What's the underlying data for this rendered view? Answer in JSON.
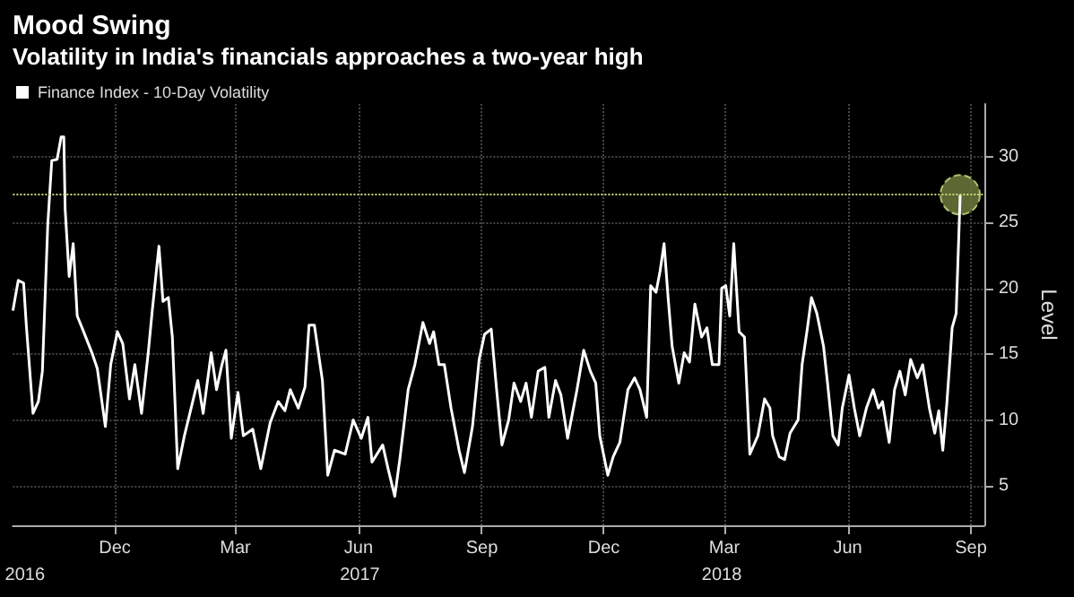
{
  "chart_data": {
    "type": "line",
    "title": "Mood Swing",
    "subtitle": "Volatility in India's financials approaches a two-year high",
    "ylabel": "Level",
    "xlim": [
      "2016-09-16",
      "2018-09-11"
    ],
    "xticks": [
      {
        "value": "2016-12-01",
        "label": "Dec"
      },
      {
        "value": "2017-03-01",
        "label": "Mar"
      },
      {
        "value": "2017-06-01",
        "label": "Jun"
      },
      {
        "value": "2017-09-01",
        "label": "Sep"
      },
      {
        "value": "2017-12-01",
        "label": "Dec"
      },
      {
        "value": "2018-03-01",
        "label": "Mar"
      },
      {
        "value": "2018-06-01",
        "label": "Jun"
      },
      {
        "value": "2018-09-01",
        "label": "Sep"
      }
    ],
    "x2lim": [
      "2016-09-16",
      "2018-09-11"
    ],
    "x2ticks": [
      {
        "value": "2016-09-25",
        "label": "2016"
      },
      {
        "value": "2017-06-02",
        "label": "2017"
      },
      {
        "value": "2018-02-27",
        "label": "2018"
      }
    ],
    "ylim": [
      2,
      34
    ],
    "yticks": [
      5,
      10,
      15,
      20,
      25,
      30
    ],
    "grid": true,
    "legend": "top left",
    "marker": "none",
    "ref_lines": [
      {
        "axis": "y",
        "value": 27.1,
        "color": "#c8d878",
        "line_style": "dotted"
      }
    ],
    "series": [
      {
        "name": "Finance Index - 10-Day Volatility",
        "color": "#ffffff",
        "x": [
          "2016-09-16",
          "2016-09-20",
          "2016-09-24",
          "2016-09-26",
          "2016-10-01",
          "2016-10-05",
          "2016-10-08",
          "2016-10-12",
          "2016-10-15",
          "2016-10-19",
          "2016-10-22",
          "2016-10-24",
          "2016-10-25",
          "2016-10-28",
          "2016-10-31",
          "2016-11-03",
          "2016-11-07",
          "2016-11-14",
          "2016-11-18",
          "2016-11-24",
          "2016-11-28",
          "2016-12-03",
          "2016-12-07",
          "2016-12-12",
          "2016-12-16",
          "2016-12-21",
          "2016-12-26",
          "2016-12-29",
          "2017-01-03",
          "2017-01-06",
          "2017-01-10",
          "2017-01-13",
          "2017-01-17",
          "2017-01-22",
          "2017-01-27",
          "2017-02-01",
          "2017-02-05",
          "2017-02-11",
          "2017-02-15",
          "2017-02-19",
          "2017-02-22",
          "2017-02-26",
          "2017-03-03",
          "2017-03-07",
          "2017-03-14",
          "2017-03-20",
          "2017-03-27",
          "2017-04-02",
          "2017-04-07",
          "2017-04-11",
          "2017-04-17",
          "2017-04-22",
          "2017-04-25",
          "2017-04-29",
          "2017-05-05",
          "2017-05-09",
          "2017-05-14",
          "2017-05-22",
          "2017-05-28",
          "2017-06-03",
          "2017-06-08",
          "2017-06-11",
          "2017-06-19",
          "2017-06-23",
          "2017-06-28",
          "2017-07-02",
          "2017-07-08",
          "2017-07-13",
          "2017-07-19",
          "2017-07-24",
          "2017-07-27",
          "2017-07-31",
          "2017-08-04",
          "2017-08-09",
          "2017-08-15",
          "2017-08-19",
          "2017-08-25",
          "2017-08-30",
          "2017-09-03",
          "2017-09-08",
          "2017-09-12",
          "2017-09-16",
          "2017-09-21",
          "2017-09-25",
          "2017-09-30",
          "2017-10-04",
          "2017-10-08",
          "2017-10-13",
          "2017-10-18",
          "2017-10-21",
          "2017-10-26",
          "2017-10-30",
          "2017-11-04",
          "2017-11-11",
          "2017-11-16",
          "2017-11-21",
          "2017-11-25",
          "2017-11-28",
          "2017-12-04",
          "2017-12-08",
          "2017-12-13",
          "2017-12-19",
          "2017-12-24",
          "2017-12-28",
          "2018-01-02",
          "2018-01-05",
          "2018-01-09",
          "2018-01-12",
          "2018-01-15",
          "2018-01-18",
          "2018-01-21",
          "2018-01-26",
          "2018-01-30",
          "2018-02-03",
          "2018-02-07",
          "2018-02-12",
          "2018-02-16",
          "2018-02-20",
          "2018-02-25",
          "2018-02-27",
          "2018-03-02",
          "2018-03-05",
          "2018-03-08",
          "2018-03-12",
          "2018-03-16",
          "2018-03-20",
          "2018-03-26",
          "2018-03-31",
          "2018-04-04",
          "2018-04-06",
          "2018-04-11",
          "2018-04-15",
          "2018-04-19",
          "2018-04-25",
          "2018-04-28",
          "2018-05-02",
          "2018-05-05",
          "2018-05-09",
          "2018-05-14",
          "2018-05-17",
          "2018-05-21",
          "2018-05-25",
          "2018-05-28",
          "2018-06-02",
          "2018-06-06",
          "2018-06-10",
          "2018-06-15",
          "2018-06-20",
          "2018-06-24",
          "2018-06-27",
          "2018-07-02",
          "2018-07-06",
          "2018-07-10",
          "2018-07-14",
          "2018-07-18",
          "2018-07-23",
          "2018-07-27",
          "2018-08-01",
          "2018-08-05",
          "2018-08-08",
          "2018-08-11",
          "2018-08-14",
          "2018-08-18",
          "2018-08-21",
          "2018-08-24"
        ],
        "values": [
          18.3,
          20.6,
          20.4,
          17.2,
          10.5,
          11.4,
          13.7,
          24.8,
          29.7,
          29.8,
          31.5,
          31.5,
          26,
          20.9,
          23.4,
          17.9,
          16.9,
          15.1,
          13.9,
          9.5,
          14.2,
          16.7,
          15.8,
          11.6,
          14.2,
          10.5,
          15.1,
          18.3,
          23.2,
          19,
          19.3,
          16.3,
          6.3,
          8.8,
          10.9,
          13,
          10.5,
          15.1,
          12.3,
          14.2,
          15.3,
          8.6,
          12.1,
          8.8,
          9.3,
          6.3,
          9.8,
          11.4,
          10.7,
          12.3,
          10.9,
          12.5,
          17.2,
          17.2,
          13,
          5.8,
          7.7,
          7.4,
          10,
          8.6,
          10.2,
          6.8,
          8.1,
          6.3,
          4.2,
          7.2,
          12.3,
          14.2,
          17.4,
          15.8,
          16.7,
          14.2,
          14.2,
          10.9,
          7.7,
          6,
          9.5,
          14.6,
          16.5,
          16.9,
          12.3,
          8.1,
          10,
          12.8,
          11.4,
          12.8,
          10.2,
          13.7,
          14,
          10.2,
          13,
          11.9,
          8.6,
          12.3,
          15.3,
          13.7,
          12.8,
          8.8,
          5.8,
          7.2,
          8.3,
          12.3,
          13.2,
          12.3,
          10.2,
          20.2,
          19.7,
          21.3,
          23.4,
          19.3,
          15.6,
          12.8,
          15.1,
          14.4,
          18.8,
          16.3,
          17,
          14.2,
          14.2,
          20,
          20.2,
          17.9,
          23.4,
          16.7,
          16.3,
          7.4,
          8.8,
          11.6,
          10.9,
          8.8,
          7.2,
          7,
          9,
          10,
          14.2,
          17,
          19.3,
          18.1,
          15.6,
          12.8,
          8.8,
          8.1,
          10.9,
          13.4,
          10.9,
          8.8,
          10.9,
          12.3,
          10.9,
          11.4,
          8.3,
          12.3,
          13.7,
          11.9,
          14.6,
          13.2,
          14.2,
          10.9,
          9,
          10.7,
          7.7,
          11.2,
          17,
          18.1,
          27.1
        ]
      },
      {
        "type": "scatter",
        "color": "#6b7a3c",
        "marker": "circle",
        "x": [
          "2018-08-24"
        ],
        "values": [
          27.1
        ]
      }
    ]
  }
}
